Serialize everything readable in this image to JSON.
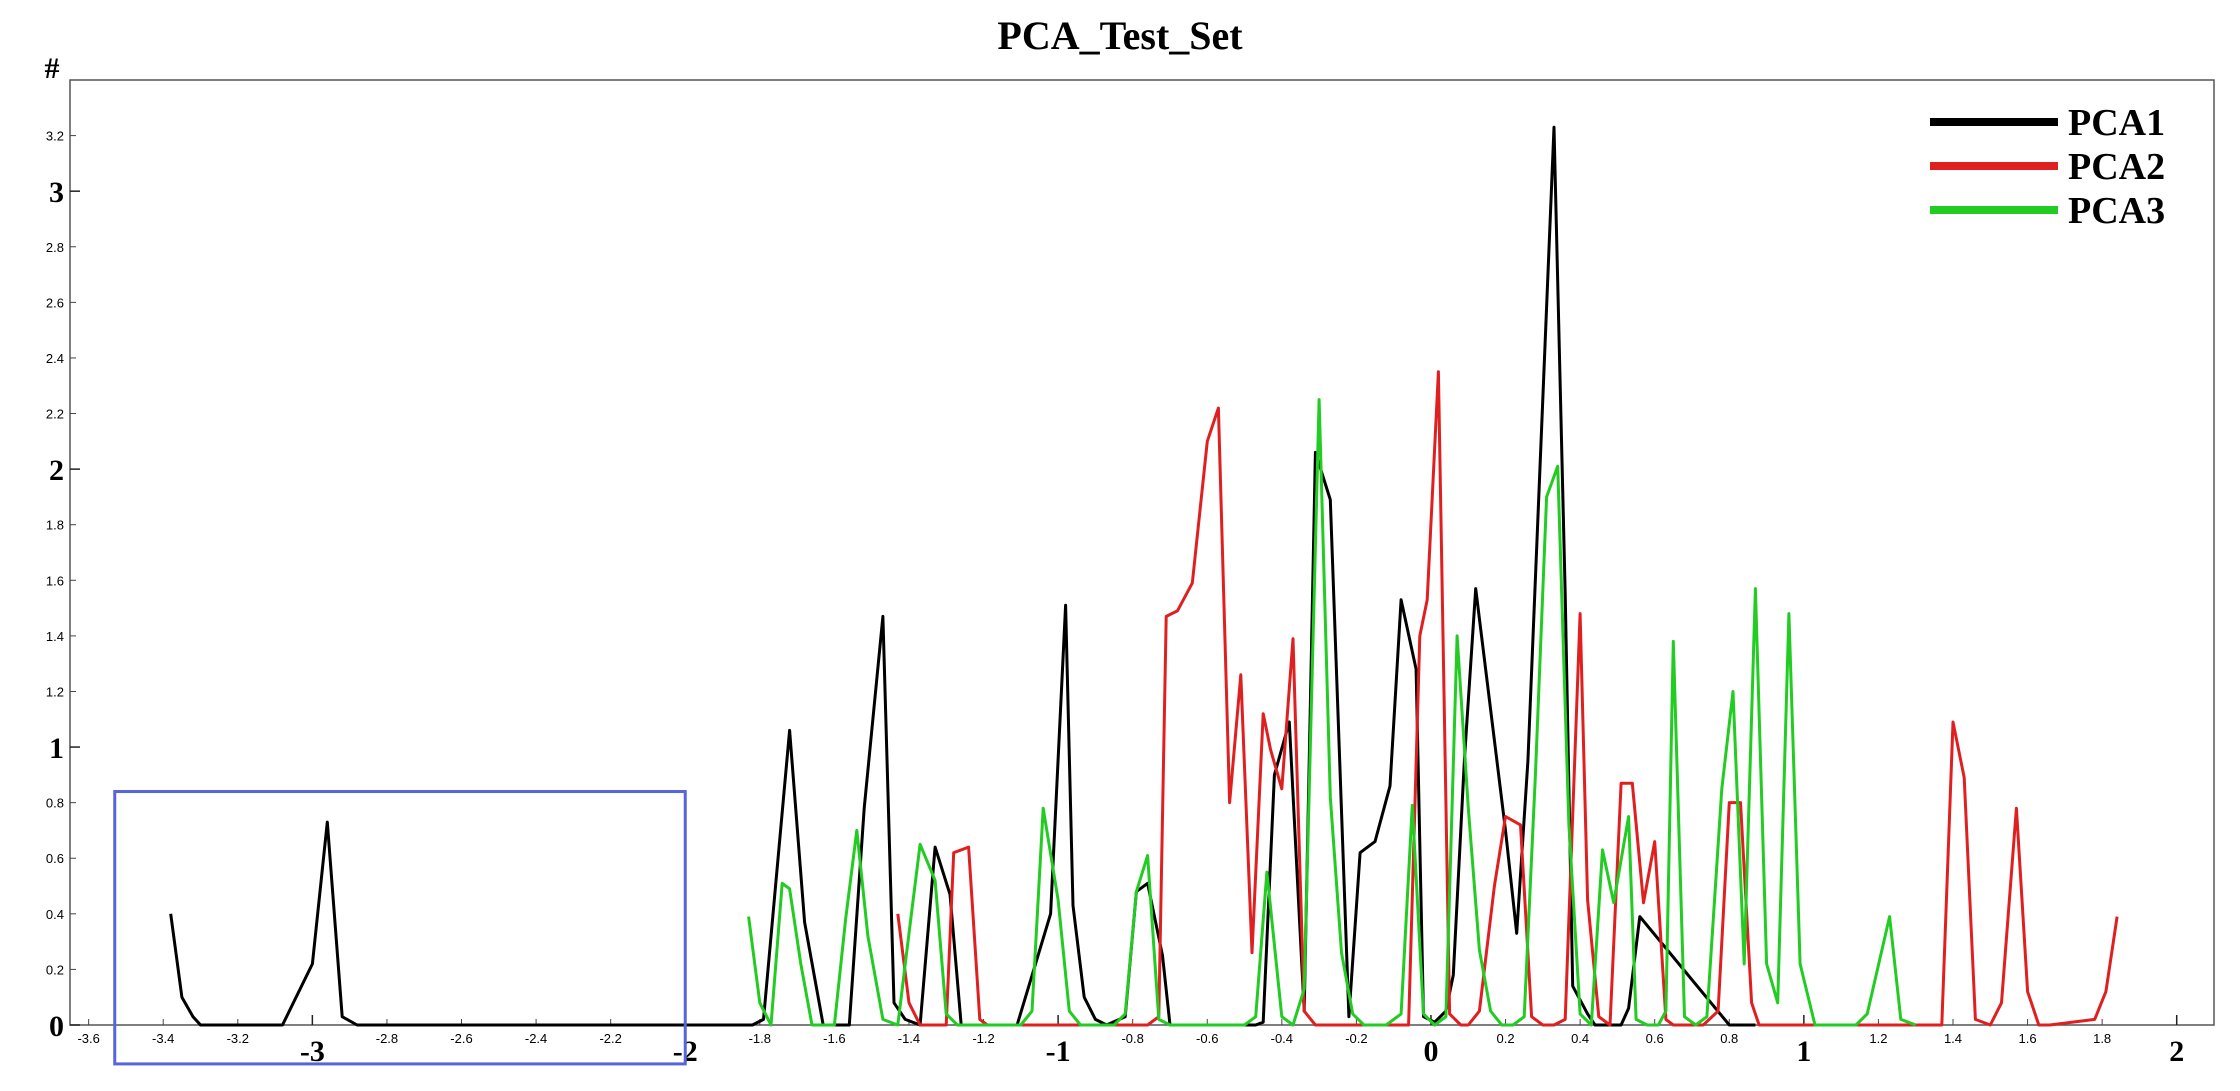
{
  "chart_data": {
    "type": "line",
    "title": "PCA_Test_Set",
    "xlabel": "",
    "ylabel": "#",
    "xlim": [
      -3.65,
      2.1
    ],
    "ylim": [
      0,
      3.4
    ],
    "grid": false,
    "legend_position": "top-right",
    "minor_x_ticks": [
      -3.6,
      -3.4,
      -3.2,
      -2.8,
      -2.6,
      -2.4,
      -2.2,
      -1.8,
      -1.6,
      -1.4,
      -1.2,
      -0.8,
      -0.6,
      -0.4,
      -0.2,
      0.2,
      0.4,
      0.6,
      0.8,
      1.2,
      1.4,
      1.6,
      1.8
    ],
    "minor_x_tick_labels": [
      "-3.6",
      "-3.4",
      "-3.2",
      "-2.8",
      "-2.6",
      "-2.4",
      "-2.2",
      "-1.8",
      "-1.6",
      "-1.4",
      "-1.2",
      "-0.8",
      "-0.6",
      "-0.4",
      "-0.2",
      "0.2",
      "0.4",
      "0.6",
      "0.8",
      "1.2",
      "1.4",
      "1.6",
      "1.8"
    ],
    "major_x_ticks": [
      -3,
      -2,
      -1,
      0,
      1,
      2
    ],
    "major_x_tick_labels": [
      "-3",
      "-2",
      "-1",
      "0",
      "1",
      "2"
    ],
    "minor_y_ticks": [
      0.2,
      0.4,
      0.6,
      0.8,
      1.2,
      1.4,
      1.6,
      1.8,
      2.2,
      2.4,
      2.6,
      2.8,
      3.2
    ],
    "minor_y_tick_labels": [
      "0.2",
      "0.4",
      "0.6",
      "0.8",
      "1.2",
      "1.4",
      "1.6",
      "1.8",
      "2.2",
      "2.4",
      "2.6",
      "2.8",
      "3.2"
    ],
    "major_y_ticks": [
      0,
      1,
      2,
      3
    ],
    "major_y_tick_labels": [
      "0",
      "1",
      "2",
      "3"
    ],
    "series": [
      {
        "name": "PCA1",
        "color": "#000000",
        "x": [
          -3.38,
          -3.35,
          -3.32,
          -3.3,
          -3.08,
          -3.0,
          -2.96,
          -2.92,
          -2.88,
          -2.86,
          -1.82,
          -1.79,
          -1.72,
          -1.68,
          -1.63,
          -1.59,
          -1.56,
          -1.52,
          -1.47,
          -1.44,
          -1.41,
          -1.37,
          -1.33,
          -1.29,
          -1.26,
          -1.23,
          -1.2,
          -1.11,
          -1.02,
          -0.98,
          -0.96,
          -0.93,
          -0.9,
          -0.87,
          -0.82,
          -0.79,
          -0.76,
          -0.72,
          -0.7,
          -0.67,
          -0.47,
          -0.45,
          -0.42,
          -0.38,
          -0.34,
          -0.31,
          -0.27,
          -0.22,
          -0.19,
          -0.15,
          -0.11,
          -0.08,
          -0.04,
          -0.02,
          0.01,
          0.04,
          0.06,
          0.09,
          0.12,
          0.2,
          0.23,
          0.26,
          0.33,
          0.36,
          0.38,
          0.42,
          0.44,
          0.47,
          0.51,
          0.53,
          0.56,
          0.8,
          0.83,
          0.87
        ],
        "y": [
          0.4,
          0.1,
          0.03,
          0,
          0,
          0.22,
          0.73,
          0.03,
          0,
          0,
          0,
          0.02,
          1.06,
          0.37,
          0,
          0,
          0,
          0.78,
          1.47,
          0.08,
          0.02,
          0,
          0.64,
          0.47,
          0,
          0,
          0,
          0,
          0.4,
          1.51,
          0.43,
          0.1,
          0.02,
          0,
          0.03,
          0.48,
          0.51,
          0.25,
          0,
          0,
          0,
          0.01,
          0.9,
          1.09,
          0.05,
          2.06,
          1.89,
          0.03,
          0.62,
          0.66,
          0.86,
          1.53,
          1.28,
          0.03,
          0.01,
          0.05,
          0.18,
          0.96,
          1.57,
          0.7,
          0.33,
          0.95,
          3.23,
          1.55,
          0.14,
          0.04,
          0,
          0,
          0,
          0.06,
          0.39,
          0,
          0,
          0
        ]
      },
      {
        "name": "PCA2",
        "color": "#e02020",
        "x": [
          -1.43,
          -1.4,
          -1.37,
          -1.35,
          -1.3,
          -1.28,
          -1.24,
          -1.21,
          -1.19,
          -0.8,
          -0.76,
          -0.73,
          -0.71,
          -0.68,
          -0.64,
          -0.6,
          -0.57,
          -0.54,
          -0.51,
          -0.48,
          -0.45,
          -0.43,
          -0.4,
          -0.37,
          -0.34,
          -0.31,
          -0.28,
          -0.26,
          -0.2,
          -0.18,
          -0.15,
          -0.12,
          -0.09,
          -0.06,
          -0.03,
          -0.01,
          0.02,
          0.05,
          0.08,
          0.1,
          0.13,
          0.17,
          0.2,
          0.24,
          0.27,
          0.3,
          0.33,
          0.36,
          0.4,
          0.42,
          0.45,
          0.48,
          0.51,
          0.54,
          0.57,
          0.6,
          0.63,
          0.65,
          0.68,
          0.7,
          0.73,
          0.77,
          0.8,
          0.83,
          0.86,
          0.88,
          0.92,
          0.95,
          0.98,
          1.37,
          1.4,
          1.43,
          1.46,
          1.5,
          1.53,
          1.57,
          1.6,
          1.63,
          1.66,
          1.78,
          1.81,
          1.84
        ],
        "y": [
          0.4,
          0.08,
          0,
          0,
          0,
          0.62,
          0.64,
          0.02,
          0,
          0,
          0,
          0.03,
          1.47,
          1.49,
          1.59,
          2.1,
          2.22,
          0.8,
          1.26,
          0.26,
          1.12,
          0.99,
          0.85,
          1.39,
          0.05,
          0,
          0,
          0,
          0,
          0,
          0,
          0,
          0,
          0,
          1.4,
          1.53,
          2.35,
          0.04,
          0,
          0,
          0.05,
          0.5,
          0.75,
          0.72,
          0.03,
          0,
          0,
          0.02,
          1.48,
          0.45,
          0.03,
          0,
          0.87,
          0.87,
          0.44,
          0.66,
          0.02,
          0,
          0,
          0,
          0,
          0.05,
          0.8,
          0.8,
          0.08,
          0,
          0,
          0,
          0,
          0,
          1.09,
          0.89,
          0.02,
          0,
          0.08,
          0.78,
          0.12,
          0,
          0,
          0.02,
          0.12,
          0.39
        ]
      },
      {
        "name": "PCA3",
        "color": "#22cc22",
        "x": [
          -1.83,
          -1.8,
          -1.77,
          -1.74,
          -1.72,
          -1.69,
          -1.66,
          -1.6,
          -1.57,
          -1.54,
          -1.51,
          -1.47,
          -1.43,
          -1.4,
          -1.37,
          -1.33,
          -1.3,
          -1.27,
          -1.24,
          -1.1,
          -1.07,
          -1.04,
          -1.0,
          -0.97,
          -0.94,
          -0.85,
          -0.82,
          -0.79,
          -0.76,
          -0.73,
          -0.7,
          -0.5,
          -0.47,
          -0.44,
          -0.4,
          -0.37,
          -0.34,
          -0.3,
          -0.27,
          -0.24,
          -0.21,
          -0.18,
          -0.15,
          -0.12,
          -0.08,
          -0.05,
          -0.02,
          0.01,
          0.04,
          0.07,
          0.1,
          0.13,
          0.16,
          0.19,
          0.22,
          0.25,
          0.28,
          0.31,
          0.34,
          0.37,
          0.4,
          0.43,
          0.46,
          0.49,
          0.53,
          0.55,
          0.58,
          0.61,
          0.63,
          0.65,
          0.68,
          0.71,
          0.74,
          0.78,
          0.81,
          0.84,
          0.87,
          0.9,
          0.93,
          0.96,
          0.99,
          1.03,
          1.05,
          1.08,
          1.11,
          1.14,
          1.17,
          1.23,
          1.26,
          1.3
        ],
        "y": [
          0.39,
          0.08,
          0,
          0.51,
          0.49,
          0.22,
          0,
          0,
          0.38,
          0.7,
          0.32,
          0.02,
          0,
          0.33,
          0.65,
          0.52,
          0.04,
          0,
          0,
          0,
          0.05,
          0.78,
          0.45,
          0.05,
          0,
          0,
          0.04,
          0.48,
          0.61,
          0.02,
          0,
          0,
          0.03,
          0.55,
          0.03,
          0,
          0.13,
          2.25,
          0.82,
          0.26,
          0.04,
          0,
          0,
          0,
          0.04,
          0.79,
          0.04,
          0,
          0.03,
          1.4,
          0.78,
          0.27,
          0.05,
          0,
          0,
          0.03,
          0.9,
          1.9,
          2.01,
          0.72,
          0.04,
          0,
          0.63,
          0.44,
          0.75,
          0.02,
          0,
          0,
          0.05,
          1.38,
          0.03,
          0,
          0.03,
          0.85,
          1.2,
          0.22,
          1.57,
          0.22,
          0.08,
          1.48,
          0.22,
          0,
          0,
          0,
          0,
          0,
          0.04,
          0.39,
          0.02,
          0
        ]
      }
    ],
    "annotation": {
      "type": "rectangle",
      "color": "#5566dd",
      "x_range": [
        -3.53,
        -2.0
      ],
      "y_range": [
        -0.14,
        0.84
      ]
    }
  }
}
